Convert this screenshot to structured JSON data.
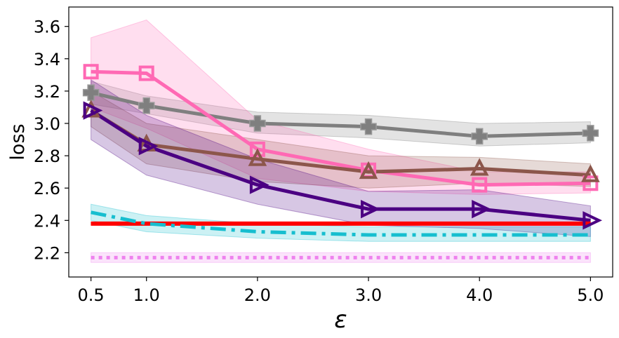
{
  "chart_data": {
    "type": "line",
    "title": "",
    "xlabel": "ε",
    "ylabel": "loss",
    "xlim": [
      0.3,
      5.2
    ],
    "ylim": [
      2.05,
      3.72
    ],
    "xticks": [
      0.5,
      1.0,
      2.0,
      3.0,
      4.0,
      5.0
    ],
    "xtick_labels": [
      "0.5",
      "1.0",
      "2.0",
      "3.0",
      "4.0",
      "5.0"
    ],
    "yticks": [
      2.2,
      2.4,
      2.6,
      2.8,
      3.0,
      3.2,
      3.4,
      3.6
    ],
    "ytick_labels": [
      "2.2",
      "2.4",
      "2.6",
      "2.8",
      "3.0",
      "3.2",
      "3.4",
      "3.6"
    ],
    "x": [
      0.5,
      1.0,
      2.0,
      3.0,
      4.0,
      5.0
    ],
    "series": [
      {
        "name": "gray-plus",
        "color": "#7f7f7f",
        "marker": "plus",
        "dash": "solid",
        "values": [
          3.19,
          3.11,
          3.0,
          2.98,
          2.92,
          2.94
        ],
        "lower": [
          3.12,
          3.06,
          2.94,
          2.91,
          2.86,
          2.88
        ],
        "upper": [
          3.26,
          3.17,
          3.07,
          3.05,
          3.0,
          3.01
        ]
      },
      {
        "name": "pink-square",
        "color": "#ff69b4",
        "marker": "square",
        "dash": "solid",
        "values": [
          3.32,
          3.31,
          2.84,
          2.71,
          2.62,
          2.63
        ],
        "lower": [
          3.1,
          2.97,
          2.66,
          2.58,
          2.56,
          2.57
        ],
        "upper": [
          3.53,
          3.64,
          3.02,
          2.84,
          2.7,
          2.7
        ]
      },
      {
        "name": "brown-triangle",
        "color": "#8c564b",
        "marker": "triangle-up",
        "dash": "solid",
        "values": [
          3.08,
          2.87,
          2.78,
          2.7,
          2.72,
          2.68
        ],
        "lower": [
          2.98,
          2.75,
          2.64,
          2.6,
          2.63,
          2.61
        ],
        "upper": [
          3.2,
          3.0,
          2.9,
          2.8,
          2.79,
          2.75
        ]
      },
      {
        "name": "indigo-triangle-right",
        "color": "#4b0082",
        "marker": "triangle-right",
        "dash": "solid",
        "values": [
          3.08,
          2.86,
          2.62,
          2.47,
          2.47,
          2.4
        ],
        "lower": [
          2.9,
          2.68,
          2.5,
          2.37,
          2.35,
          2.3
        ],
        "upper": [
          3.27,
          3.05,
          2.78,
          2.58,
          2.59,
          2.49
        ]
      },
      {
        "name": "red-baseline",
        "color": "#ff0000",
        "marker": "none",
        "dash": "solid",
        "values": [
          2.38,
          2.38,
          2.38,
          2.38,
          2.38,
          2.38
        ],
        "lower": [
          2.37,
          2.37,
          2.37,
          2.37,
          2.37,
          2.37
        ],
        "upper": [
          2.39,
          2.39,
          2.39,
          2.39,
          2.39,
          2.39
        ]
      },
      {
        "name": "cyan-dashdot",
        "color": "#17becf",
        "marker": "none",
        "dash": "dashdot",
        "values": [
          2.45,
          2.38,
          2.33,
          2.31,
          2.31,
          2.31
        ],
        "lower": [
          2.4,
          2.33,
          2.29,
          2.27,
          2.27,
          2.27
        ],
        "upper": [
          2.5,
          2.43,
          2.38,
          2.36,
          2.36,
          2.36
        ]
      },
      {
        "name": "violet-dotted",
        "color": "#ee82ee",
        "marker": "none",
        "dash": "dotted",
        "values": [
          2.17,
          2.17,
          2.17,
          2.17,
          2.17,
          2.17
        ],
        "lower": [
          2.14,
          2.14,
          2.14,
          2.14,
          2.14,
          2.14
        ],
        "upper": [
          2.2,
          2.2,
          2.2,
          2.2,
          2.2,
          2.2
        ]
      }
    ],
    "grid": false,
    "legend": "none"
  }
}
